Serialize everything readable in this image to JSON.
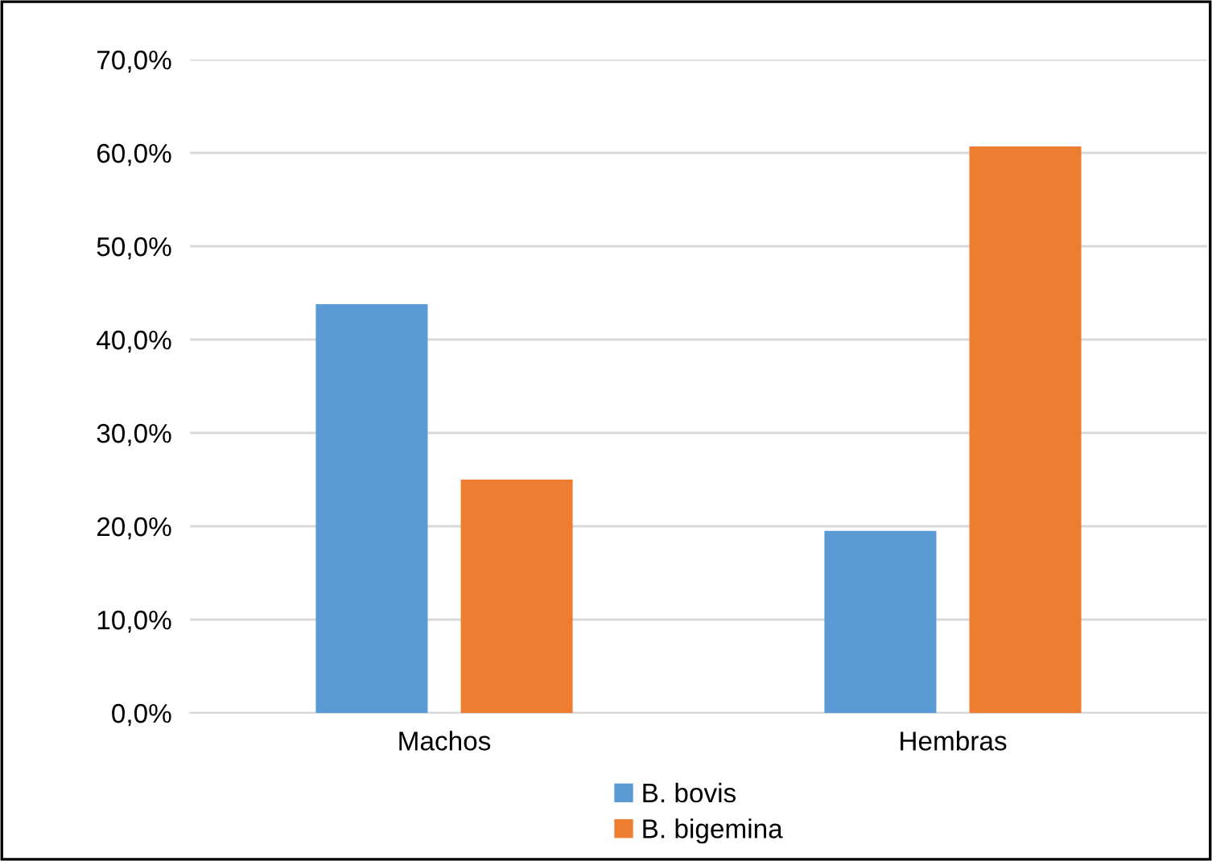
{
  "chart_data": {
    "type": "bar",
    "categories": [
      "Machos",
      "Hembras"
    ],
    "series": [
      {
        "name": "B. bovis",
        "color": "#5b9bd5",
        "values": [
          43.8,
          19.5
        ]
      },
      {
        "name": "B. bigemina",
        "color": "#ed7d31",
        "values": [
          25.0,
          60.7
        ]
      }
    ],
    "ylim": [
      0,
      70
    ],
    "yticks": [
      {
        "value": 0,
        "label": "0,0%"
      },
      {
        "value": 10,
        "label": "10,0%"
      },
      {
        "value": 20,
        "label": "20,0%"
      },
      {
        "value": 30,
        "label": "30,0%"
      },
      {
        "value": 40,
        "label": "40,0%"
      },
      {
        "value": 50,
        "label": "50,0%"
      },
      {
        "value": 60,
        "label": "60,0%"
      },
      {
        "value": 70,
        "label": "70,0%"
      }
    ],
    "grid": "y",
    "legend": "bottom"
  }
}
